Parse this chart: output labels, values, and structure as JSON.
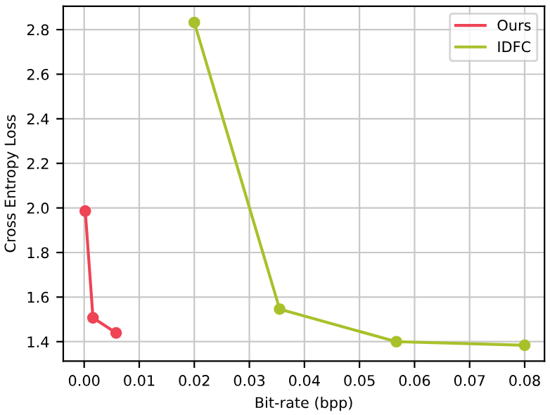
{
  "chart_data": {
    "type": "line",
    "xlabel": "Bit-rate (bpp)",
    "ylabel": "Cross Entropy Loss",
    "series": [
      {
        "name": "Ours",
        "color": "#ee4455",
        "x": [
          0.0002,
          0.0016,
          0.0058
        ],
        "values": [
          1.986,
          1.507,
          1.439
        ]
      },
      {
        "name": "IDFC",
        "color": "#a8c12b",
        "x": [
          0.02,
          0.0355,
          0.0567,
          0.08
        ],
        "values": [
          2.832,
          1.546,
          1.4,
          1.384
        ]
      }
    ],
    "xlim": [
      -0.0038,
      0.0836
    ],
    "xticks": [
      {
        "value": 0,
        "label": "0.00"
      },
      {
        "value": 0.01,
        "label": "0.01"
      },
      {
        "value": 0.02,
        "label": "0.02"
      },
      {
        "value": 0.03,
        "label": "0.03"
      },
      {
        "value": 0.04,
        "label": "0.04"
      },
      {
        "value": 0.05,
        "label": "0.05"
      },
      {
        "value": 0.06,
        "label": "0.06"
      },
      {
        "value": 0.07,
        "label": "0.07"
      },
      {
        "value": 0.08,
        "label": "0.08"
      }
    ],
    "ylim": [
      1.313,
      2.905
    ],
    "yticks": [
      1.4,
      1.6,
      1.8,
      {
        "value": 2,
        "label": "2.0"
      },
      2.2,
      2.4,
      2.6,
      2.8
    ],
    "grid": true,
    "legend": "upper right",
    "marker": "circle",
    "line_style": "solid"
  }
}
